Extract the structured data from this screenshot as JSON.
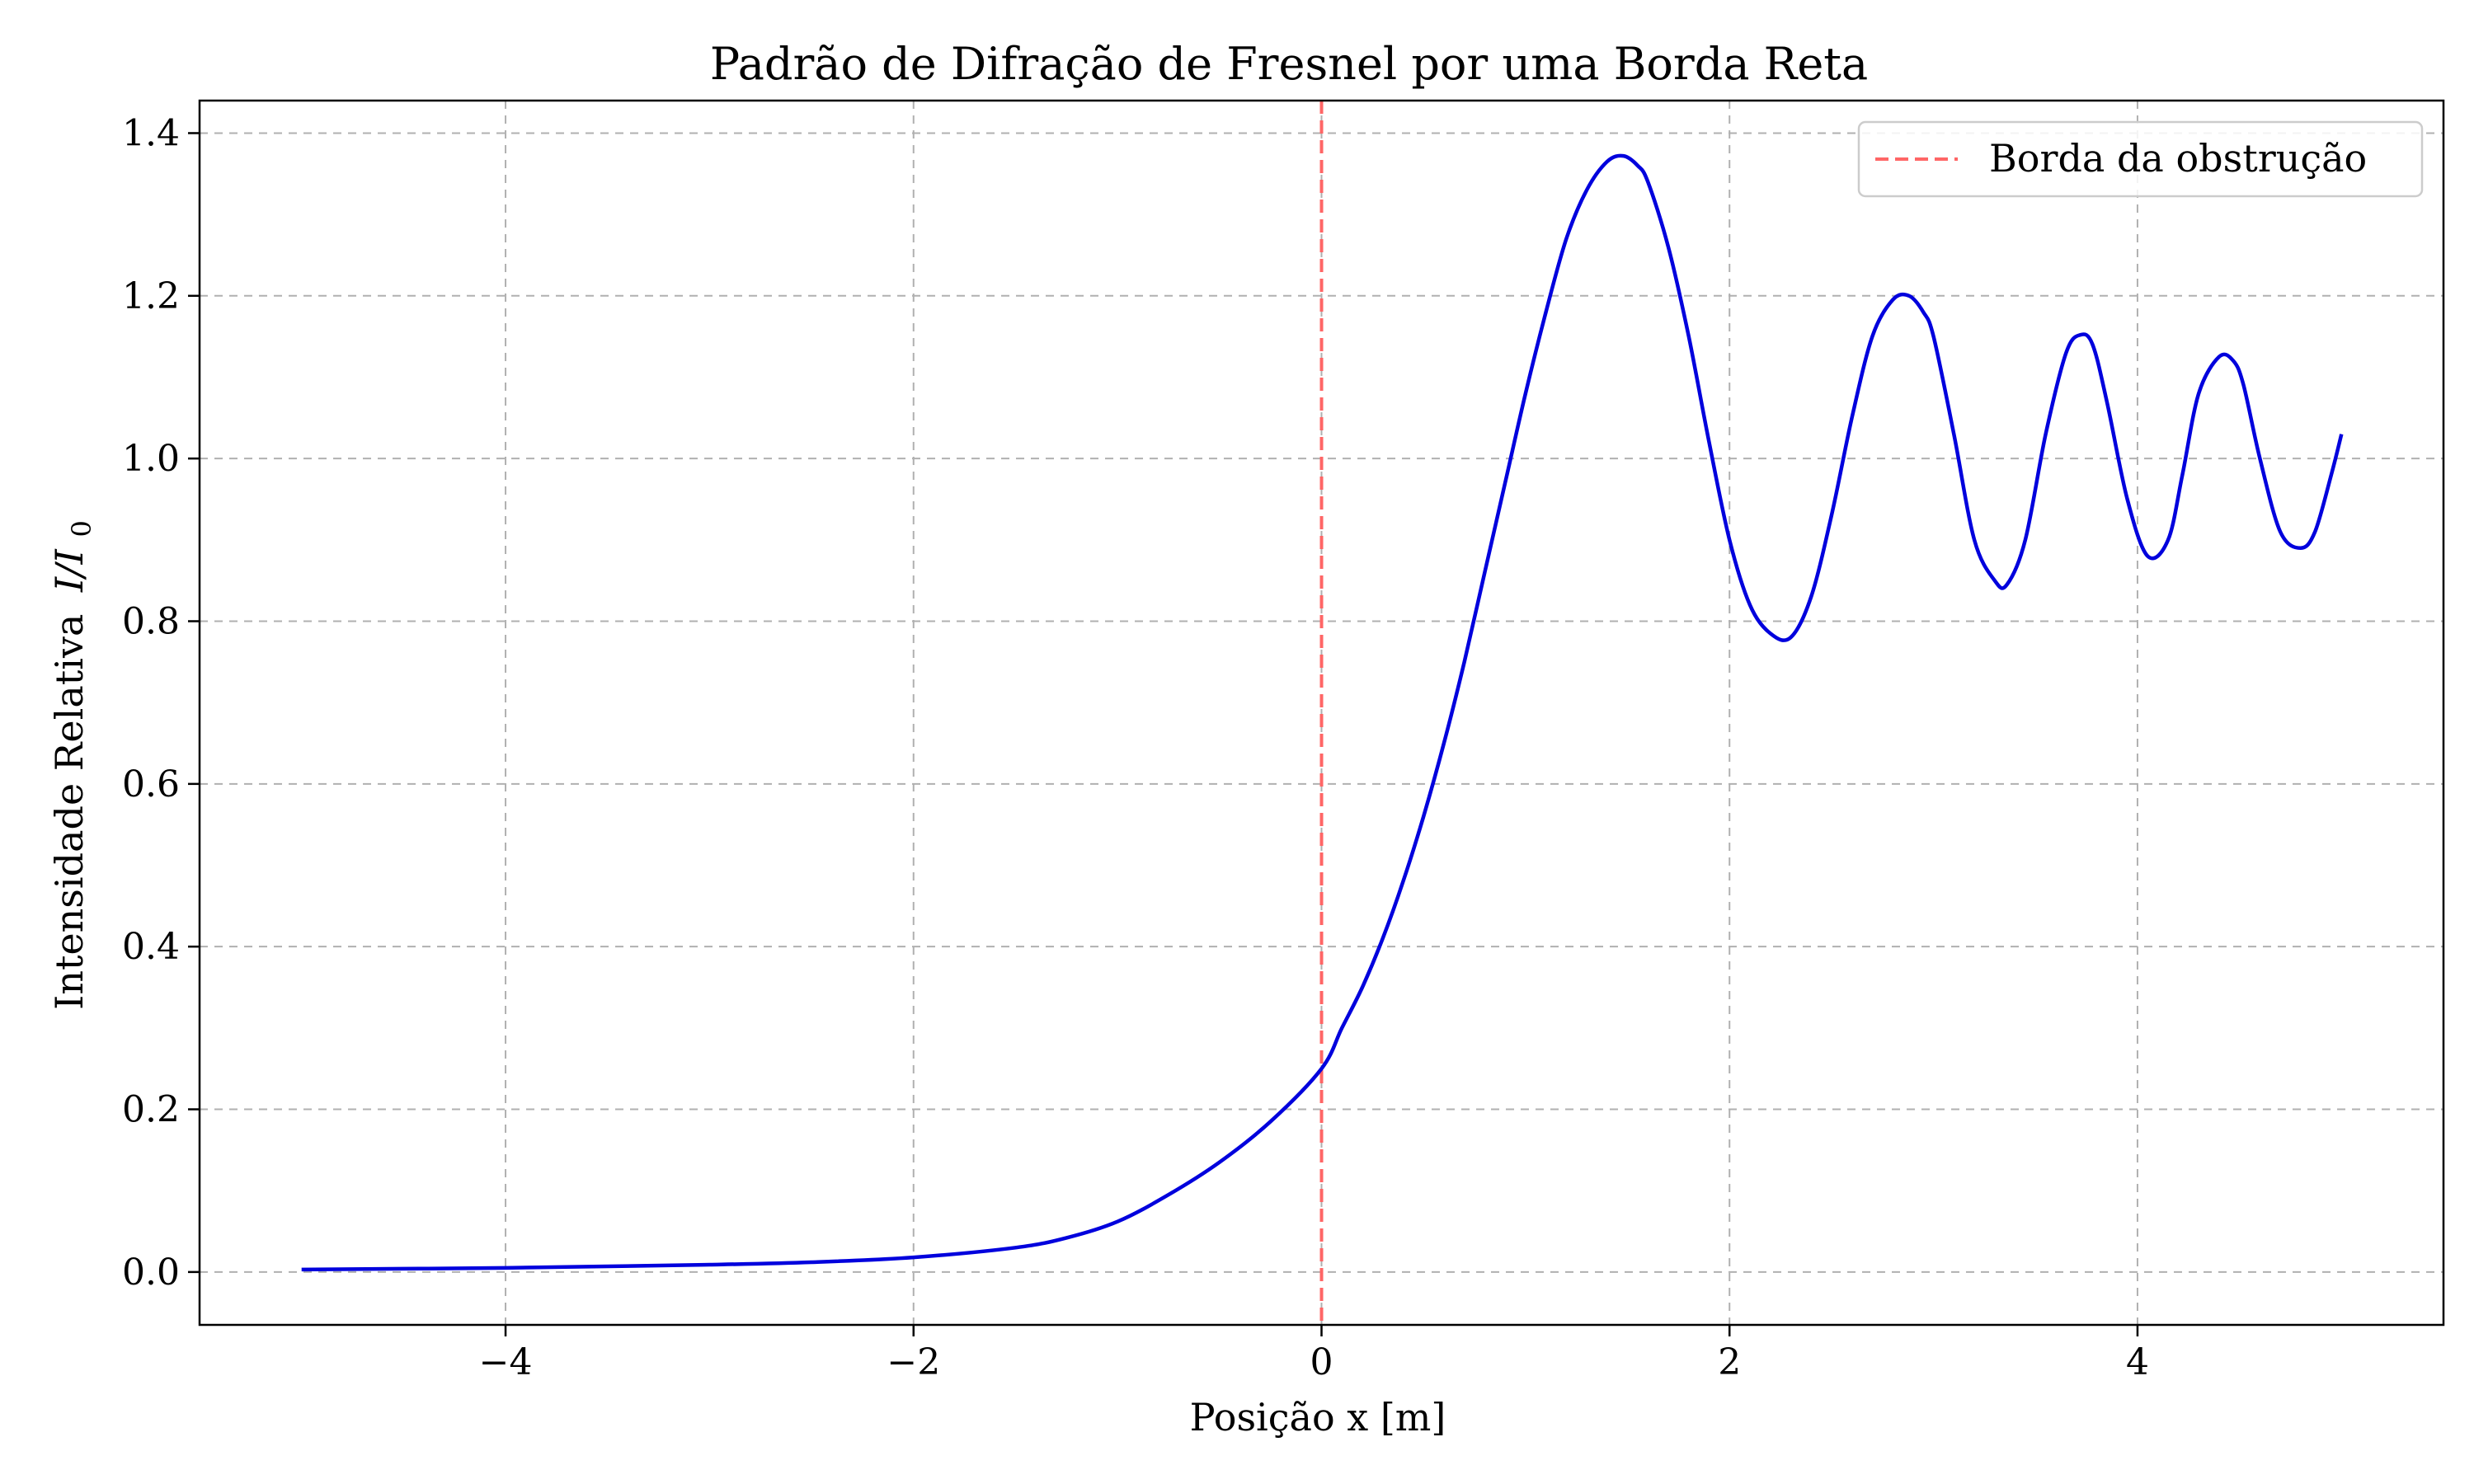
{
  "chart_data": {
    "type": "line",
    "title": "Padrão de Difração de Fresnel por uma Borda Reta",
    "xlabel": "Posição x [m]",
    "ylabel": "Intensidade Relativa",
    "ylabel_math": "I/I",
    "ylabel_sub": "0",
    "xlim": [
      -5.5,
      5.5
    ],
    "ylim": [
      -0.065,
      1.44
    ],
    "xticks": [
      -4,
      -2,
      0,
      2,
      4
    ],
    "xtick_labels": [
      "−4",
      "−2",
      "0",
      "2",
      "4"
    ],
    "yticks": [
      0.0,
      0.2,
      0.4,
      0.6,
      0.8,
      1.0,
      1.2,
      1.4
    ],
    "ytick_labels": [
      "0.0",
      "0.2",
      "0.4",
      "0.6",
      "0.8",
      "1.0",
      "1.2",
      "1.4"
    ],
    "grid": true,
    "legend_position": "top-right",
    "series": [
      {
        "color": "#0000dd",
        "x": [
          -5.0,
          -4.5,
          -4.0,
          -3.5,
          -3.0,
          -2.5,
          -2.0,
          -1.5,
          -1.25,
          -1.0,
          -0.75,
          -0.5,
          -0.25,
          0.0,
          0.1,
          0.2,
          0.3,
          0.4,
          0.5,
          0.6,
          0.7,
          0.8,
          0.9,
          1.0,
          1.1,
          1.2,
          1.3,
          1.4,
          1.48,
          1.55,
          1.6,
          1.7,
          1.8,
          1.9,
          2.0,
          2.1,
          2.2,
          2.3,
          2.4,
          2.5,
          2.6,
          2.7,
          2.8,
          2.88,
          2.95,
          3.0,
          3.1,
          3.2,
          3.3,
          3.36,
          3.45,
          3.55,
          3.65,
          3.72,
          3.78,
          3.85,
          3.95,
          4.05,
          4.15,
          4.22,
          4.3,
          4.4,
          4.47,
          4.52,
          4.6,
          4.7,
          4.8,
          4.87,
          4.95,
          5.0
        ],
        "y": [
          0.003,
          0.004,
          0.005,
          0.007,
          0.009,
          0.012,
          0.018,
          0.03,
          0.042,
          0.062,
          0.095,
          0.135,
          0.185,
          0.25,
          0.3,
          0.35,
          0.41,
          0.48,
          0.56,
          0.65,
          0.75,
          0.86,
          0.97,
          1.08,
          1.18,
          1.27,
          1.33,
          1.365,
          1.372,
          1.36,
          1.34,
          1.26,
          1.15,
          1.02,
          0.9,
          0.82,
          0.785,
          0.78,
          0.83,
          0.93,
          1.05,
          1.15,
          1.195,
          1.2,
          1.18,
          1.15,
          1.03,
          0.9,
          0.85,
          0.845,
          0.9,
          1.03,
          1.13,
          1.152,
          1.14,
          1.07,
          0.95,
          0.88,
          0.9,
          0.98,
          1.08,
          1.125,
          1.12,
          1.09,
          1.0,
          0.91,
          0.89,
          0.91,
          0.98,
          1.03
        ]
      }
    ],
    "annotations": [
      {
        "type": "vline",
        "x": 0,
        "color": "#ff6666",
        "legend": "Borda da obstrução"
      }
    ]
  }
}
